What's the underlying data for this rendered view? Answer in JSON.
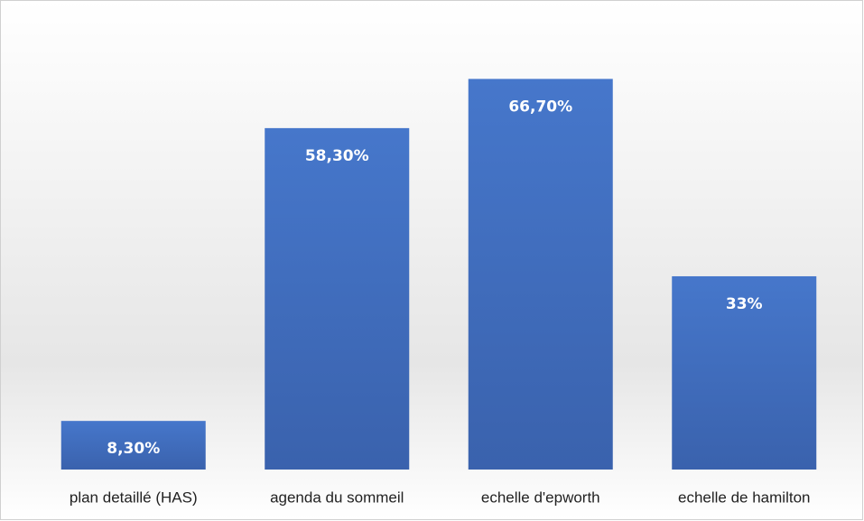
{
  "chart_data": {
    "type": "bar",
    "categories": [
      "plan detaillé (HAS)",
      "agenda du sommeil",
      "echelle d'epworth",
      "echelle de hamilton"
    ],
    "values": [
      8.3,
      58.3,
      66.7,
      33
    ],
    "value_labels": [
      "8,30%",
      "58,30%",
      "66,70%",
      "33%"
    ],
    "color": "#4472c4",
    "ylim": [
      0,
      70
    ]
  }
}
